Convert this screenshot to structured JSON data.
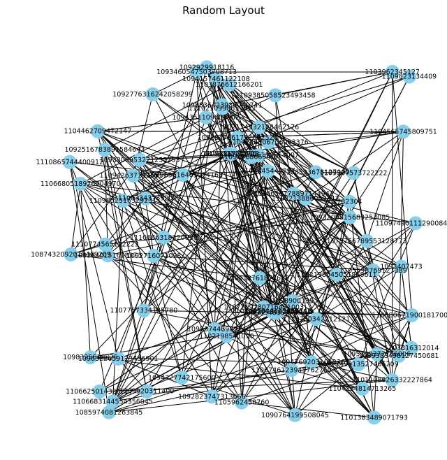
{
  "title": "Random Layout",
  "style": {
    "node_color": "#87CEEB",
    "edge_color": "#000000"
  },
  "graph": {
    "nodes": [
      "1092776316242058299",
      "1104746306706003376",
      "1093460547503708713",
      "1098836423936040741",
      "1101383489071793",
      "1075766789553128773",
      "1106746123945762760",
      "1109385058523493458",
      "1106683144554356045",
      "1101108626332227864",
      "1102174932128462176",
      "1101082906118614007",
      "1089383498127450681",
      "1096322659123456901",
      "1103876612166201",
      "1087432092019469209",
      "1097749313527465209",
      "1108213886049342",
      "1108455844113658841",
      "1110780342212121",
      "1109749011129008499",
      "1104462709472147",
      "1110210998653612",
      "1102198645051868611",
      "782304",
      "1093806953221255253",
      "1110865744400912",
      "1094327742175600",
      "1104565745809751",
      "1105598769127389",
      "1108963616405474168",
      "1085974081263845",
      "1106625014320317",
      "1093209815683253085",
      "1108593678127900",
      "1110774565112223",
      "1092516783891584643",
      "1092978662695150",
      "1092847661712512524",
      "1107757334125780",
      "1095109377766006",
      "1094769203101236",
      "1094351109604902",
      "1093640151618373",
      "1090764199508045",
      "1095374469721",
      "1094157461122108",
      "1098325618829",
      "1103516312014",
      "1109852516329231",
      "1110686318320050",
      "1104234814713265",
      "1109426371125517",
      "1094568663407",
      "1092929918116",
      "1110658778897144942",
      "1103001420713",
      "1106546157765",
      "1109187618726127",
      "1100334378920",
      "1092823747313666",
      "1109920311400",
      "1093407473",
      "1103962345127",
      "1092716071098",
      "1105962458760",
      "1108806719001817003",
      "1109307573722222",
      "1107219280716431003",
      "1106680518976904970",
      "1102198541090",
      "1109823134409",
      "1108845444297",
      "1098900135",
      "1109351722080"
    ],
    "edge_count": 320
  }
}
